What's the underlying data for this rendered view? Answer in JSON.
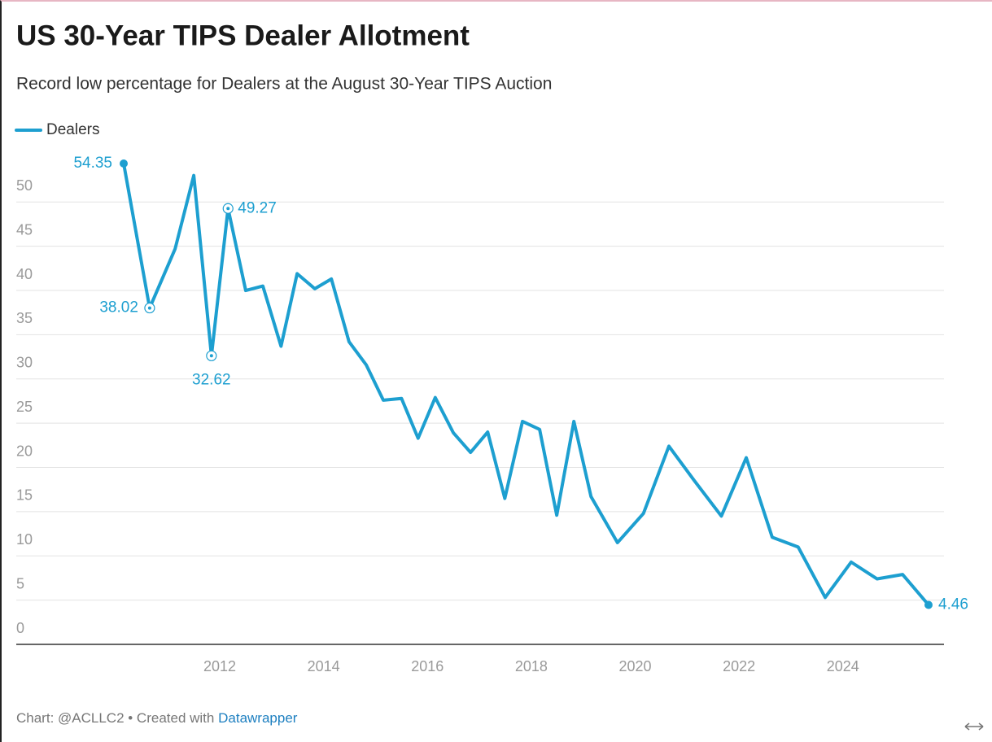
{
  "chart_data": {
    "type": "line",
    "title": "US 30-Year TIPS Dealer Allotment",
    "subtitle": "Record low percentage for Dealers at the August 30-Year TIPS Auction",
    "x": [
      2010.15,
      2010.65,
      2011.14,
      2011.5,
      2011.84,
      2012.16,
      2012.5,
      2012.83,
      2013.18,
      2013.49,
      2013.83,
      2014.15,
      2014.49,
      2014.82,
      2015.15,
      2015.5,
      2015.82,
      2016.15,
      2016.5,
      2016.83,
      2017.16,
      2017.49,
      2017.83,
      2018.16,
      2018.49,
      2018.82,
      2019.15,
      2019.66,
      2020.16,
      2020.65,
      2021.14,
      2021.66,
      2022.14,
      2022.64,
      2023.14,
      2023.66,
      2024.16,
      2024.66,
      2025.15,
      2025.65
    ],
    "series": [
      {
        "name": "Dealers",
        "color": "#1d9fd0",
        "values": [
          54.35,
          38.02,
          44.7,
          53.0,
          32.62,
          49.27,
          40.0,
          40.5,
          33.7,
          41.9,
          40.2,
          41.3,
          34.2,
          31.6,
          27.6,
          27.8,
          23.3,
          27.9,
          23.9,
          21.7,
          24.0,
          16.5,
          25.2,
          24.3,
          14.6,
          25.2,
          16.7,
          11.5,
          14.8,
          22.4,
          18.5,
          14.5,
          21.1,
          12.1,
          11.0,
          5.3,
          9.3,
          7.4,
          7.9,
          4.46
        ]
      }
    ],
    "labeled_points": [
      0,
      1,
      4,
      5,
      39
    ],
    "xlim": [
      2010.15,
      2025.65
    ],
    "xticks": [
      2012,
      2014,
      2016,
      2018,
      2020,
      2022,
      2024
    ],
    "ylim": [
      0,
      54.35
    ],
    "yticks": [
      0,
      5,
      10,
      15,
      20,
      25,
      30,
      35,
      40,
      45,
      50
    ],
    "grid": true,
    "source": "Chart: @ACLLC2 • Created with",
    "source_link": "Datawrapper"
  }
}
